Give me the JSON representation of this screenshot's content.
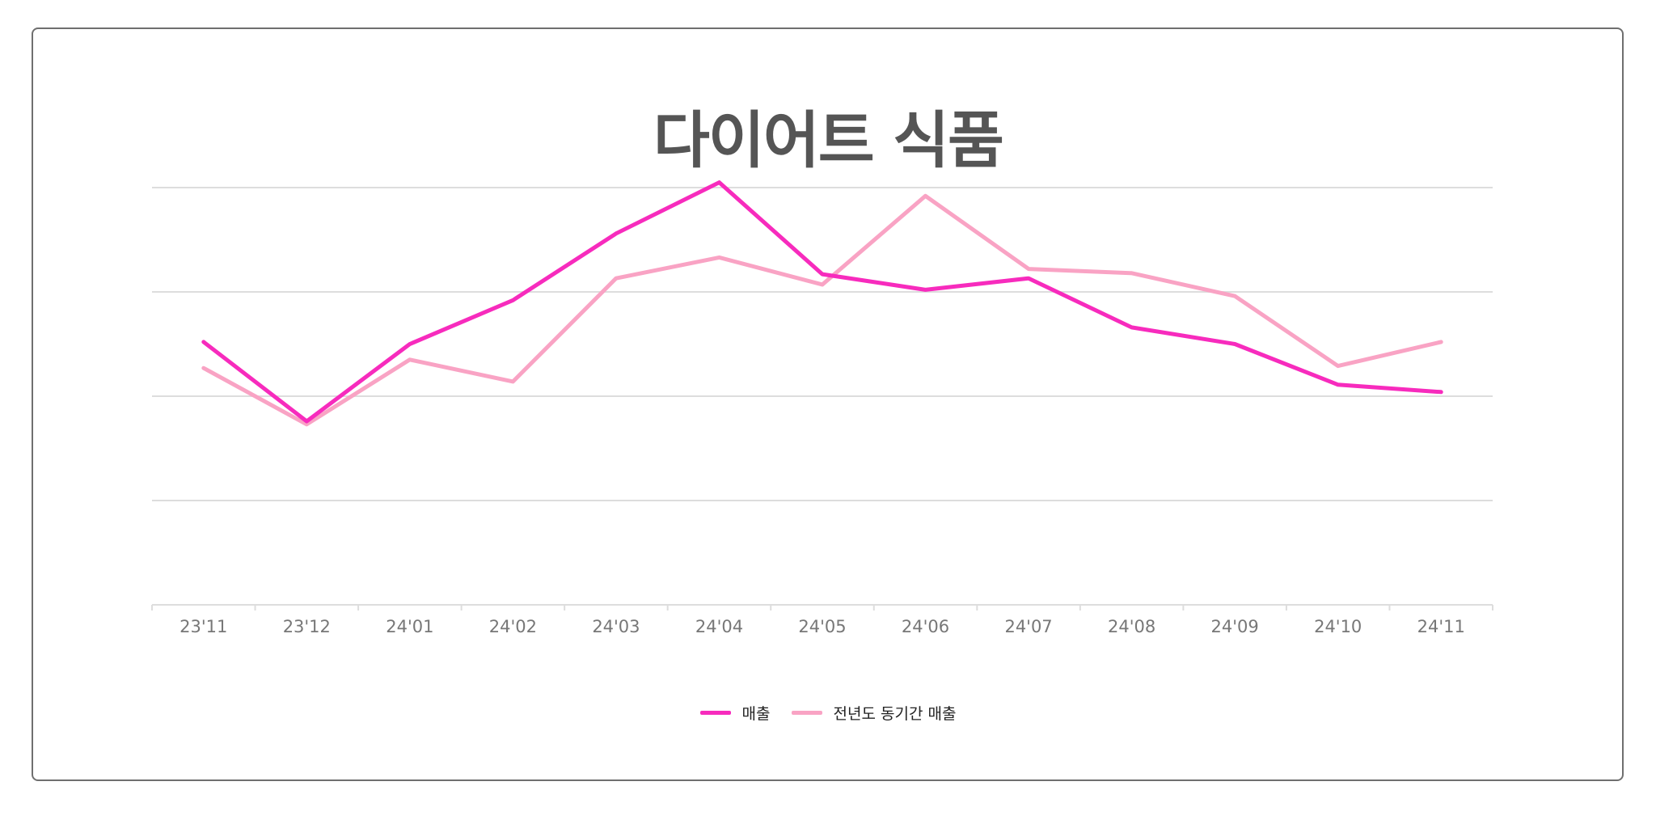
{
  "chart_data": {
    "type": "line",
    "title": "다이어트 식품",
    "categories": [
      "23'11",
      "23'12",
      "24'01",
      "24'02",
      "24'03",
      "24'04",
      "24'05",
      "24'06",
      "24'07",
      "24'08",
      "24'09",
      "24'10",
      "24'11"
    ],
    "series": [
      {
        "name": "매출",
        "color": "#f72bbd",
        "values": [
          2.52,
          1.76,
          2.5,
          2.92,
          3.56,
          4.05,
          3.17,
          3.02,
          3.13,
          2.66,
          2.5,
          2.11,
          2.04
        ]
      },
      {
        "name": "전년도 동기간 매출",
        "color": "#f9a3c4",
        "values": [
          2.27,
          1.73,
          2.35,
          2.14,
          3.13,
          3.33,
          3.07,
          3.92,
          3.22,
          3.18,
          2.96,
          2.29,
          2.52
        ]
      }
    ],
    "ylim": [
      0,
      4
    ],
    "grid": true,
    "y_tick_labels_visible": false,
    "legend_position": "bottom-center"
  }
}
